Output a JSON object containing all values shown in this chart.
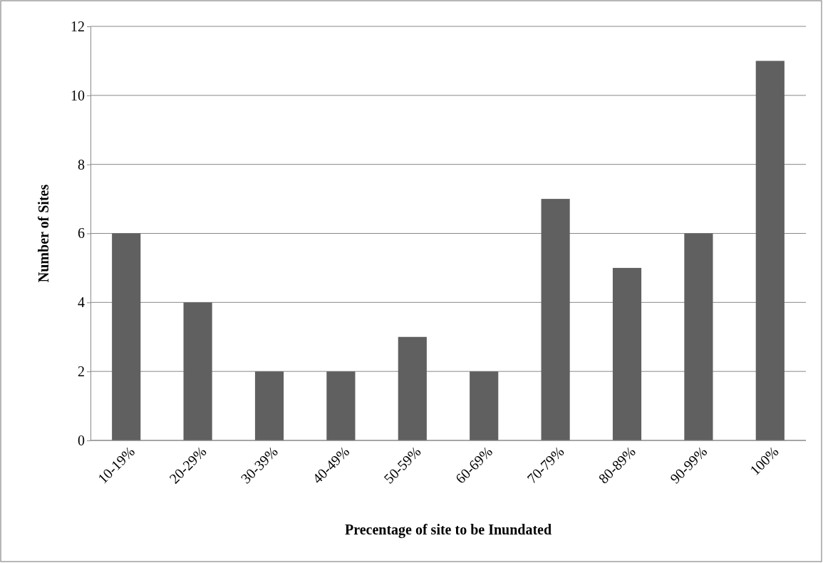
{
  "chart_data": {
    "type": "bar",
    "xlabel": "Precentage of site to be Inundated",
    "ylabel": "Number of Sites",
    "categories": [
      "10-19%",
      "20-29%",
      "30-39%",
      "40-49%",
      "50-59%",
      "60-69%",
      "70-79%",
      "80-89%",
      "90-99%",
      "100%"
    ],
    "values": [
      6,
      4,
      2,
      2,
      3,
      2,
      7,
      5,
      6,
      11
    ],
    "color": "#606060",
    "ylim": [
      0,
      12
    ],
    "yticks": [
      0,
      2,
      4,
      6,
      8,
      10,
      12
    ],
    "grid": "y"
  }
}
